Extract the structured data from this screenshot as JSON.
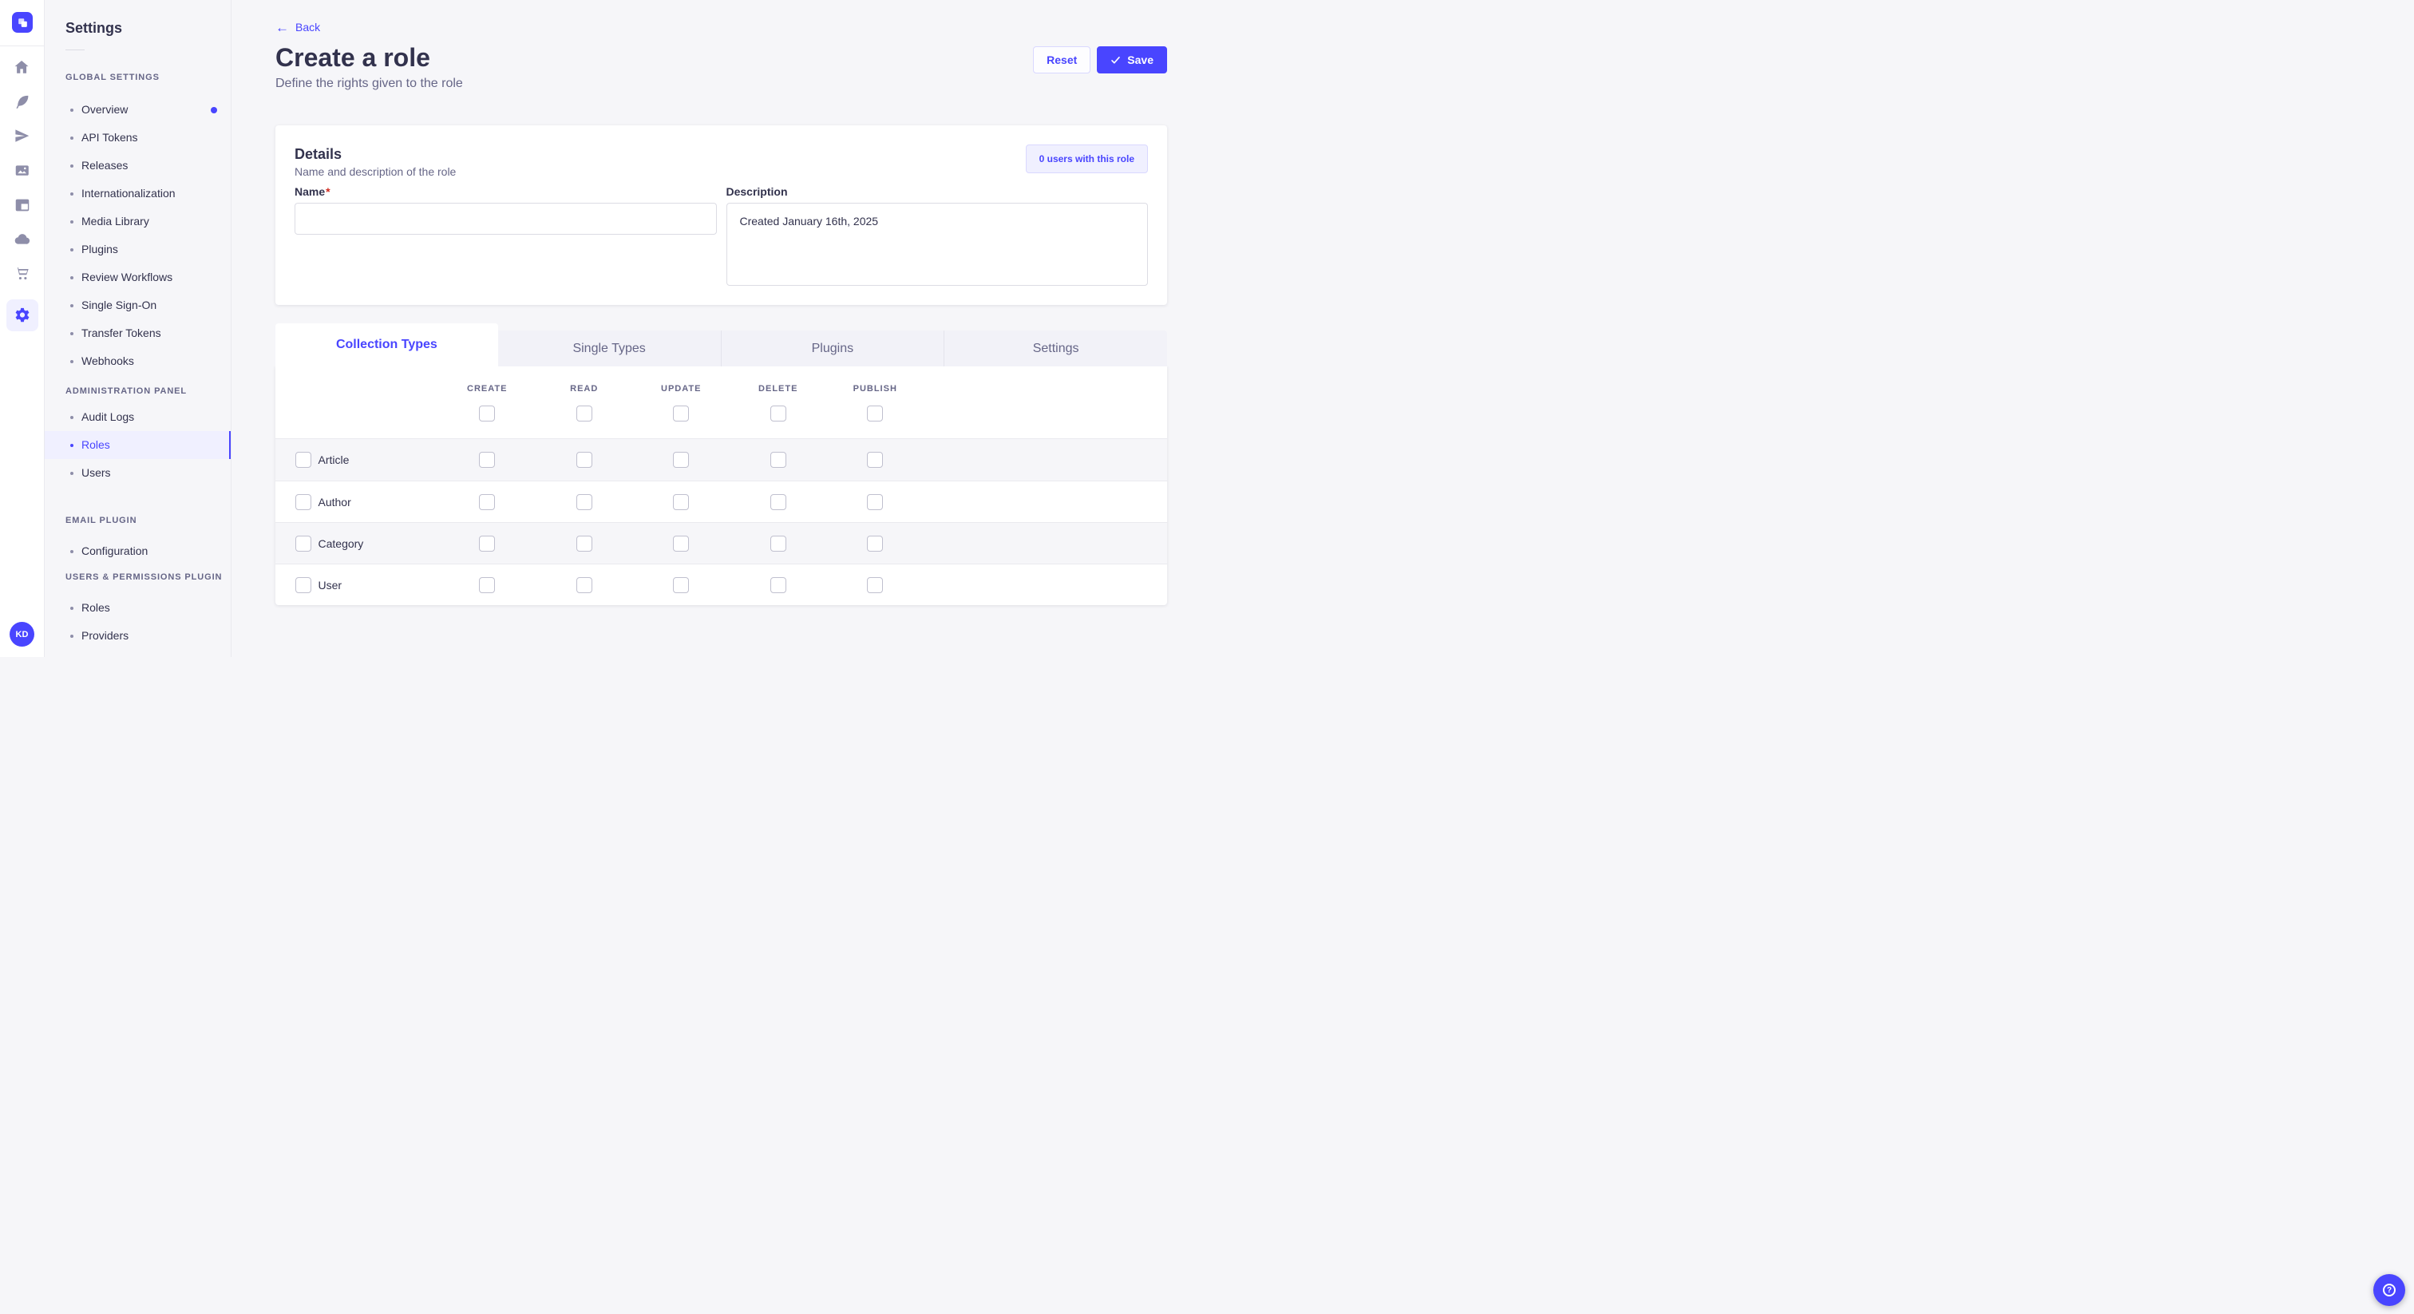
{
  "icon_rail": {
    "icons": [
      {
        "name": "home"
      },
      {
        "name": "feather"
      },
      {
        "name": "paper-plane"
      },
      {
        "name": "media"
      },
      {
        "name": "layout"
      },
      {
        "name": "cloud"
      },
      {
        "name": "cart"
      },
      {
        "name": "gear",
        "active": true
      }
    ],
    "avatar_initials": "KD"
  },
  "sidebar": {
    "title": "Settings",
    "sections": [
      {
        "label": "GLOBAL SETTINGS",
        "items": [
          {
            "label": "Overview",
            "notification": true
          },
          {
            "label": "API Tokens"
          },
          {
            "label": "Releases"
          },
          {
            "label": "Internationalization"
          },
          {
            "label": "Media Library"
          },
          {
            "label": "Plugins"
          },
          {
            "label": "Review Workflows"
          },
          {
            "label": "Single Sign-On"
          },
          {
            "label": "Transfer Tokens"
          },
          {
            "label": "Webhooks"
          }
        ]
      },
      {
        "label": "ADMINISTRATION PANEL",
        "items": [
          {
            "label": "Audit Logs"
          },
          {
            "label": "Roles",
            "active": true
          },
          {
            "label": "Users"
          }
        ]
      },
      {
        "label": "EMAIL PLUGIN",
        "items": [
          {
            "label": "Configuration"
          }
        ]
      },
      {
        "label": "USERS & PERMISSIONS PLUGIN",
        "items": [
          {
            "label": "Roles"
          },
          {
            "label": "Providers"
          }
        ]
      }
    ]
  },
  "header": {
    "back_icon": "←",
    "back_label": "Back",
    "title": "Create a role",
    "subtitle": "Define the rights given to the role",
    "reset_label": "Reset",
    "save_label": "Save"
  },
  "details": {
    "title": "Details",
    "subtitle": "Name and description of the role",
    "users_badge": "0 users with this role",
    "name_label": "Name",
    "required_mark": "*",
    "name_value": "",
    "description_label": "Description",
    "description_value": "Created January 16th, 2025"
  },
  "tabs": [
    {
      "label": "Collection Types",
      "active": true
    },
    {
      "label": "Single Types"
    },
    {
      "label": "Plugins"
    },
    {
      "label": "Settings"
    }
  ],
  "permissions": {
    "columns": [
      "CREATE",
      "READ",
      "UPDATE",
      "DELETE",
      "PUBLISH"
    ],
    "rows": [
      "Article",
      "Author",
      "Category",
      "User"
    ],
    "all_checked": false
  },
  "footer": {
    "help_icon": "?"
  },
  "colors": {
    "primary": "#4945ff",
    "primary_light": "#f0f0ff",
    "primary_border": "#d9d8ff",
    "text": "#32324d",
    "text_muted": "#666687",
    "page_bg": "#f6f6f9",
    "border": "#eaeaef",
    "input_border": "#dcdce4",
    "checkbox_border": "#c0c0cf",
    "danger": "#d02b20"
  }
}
